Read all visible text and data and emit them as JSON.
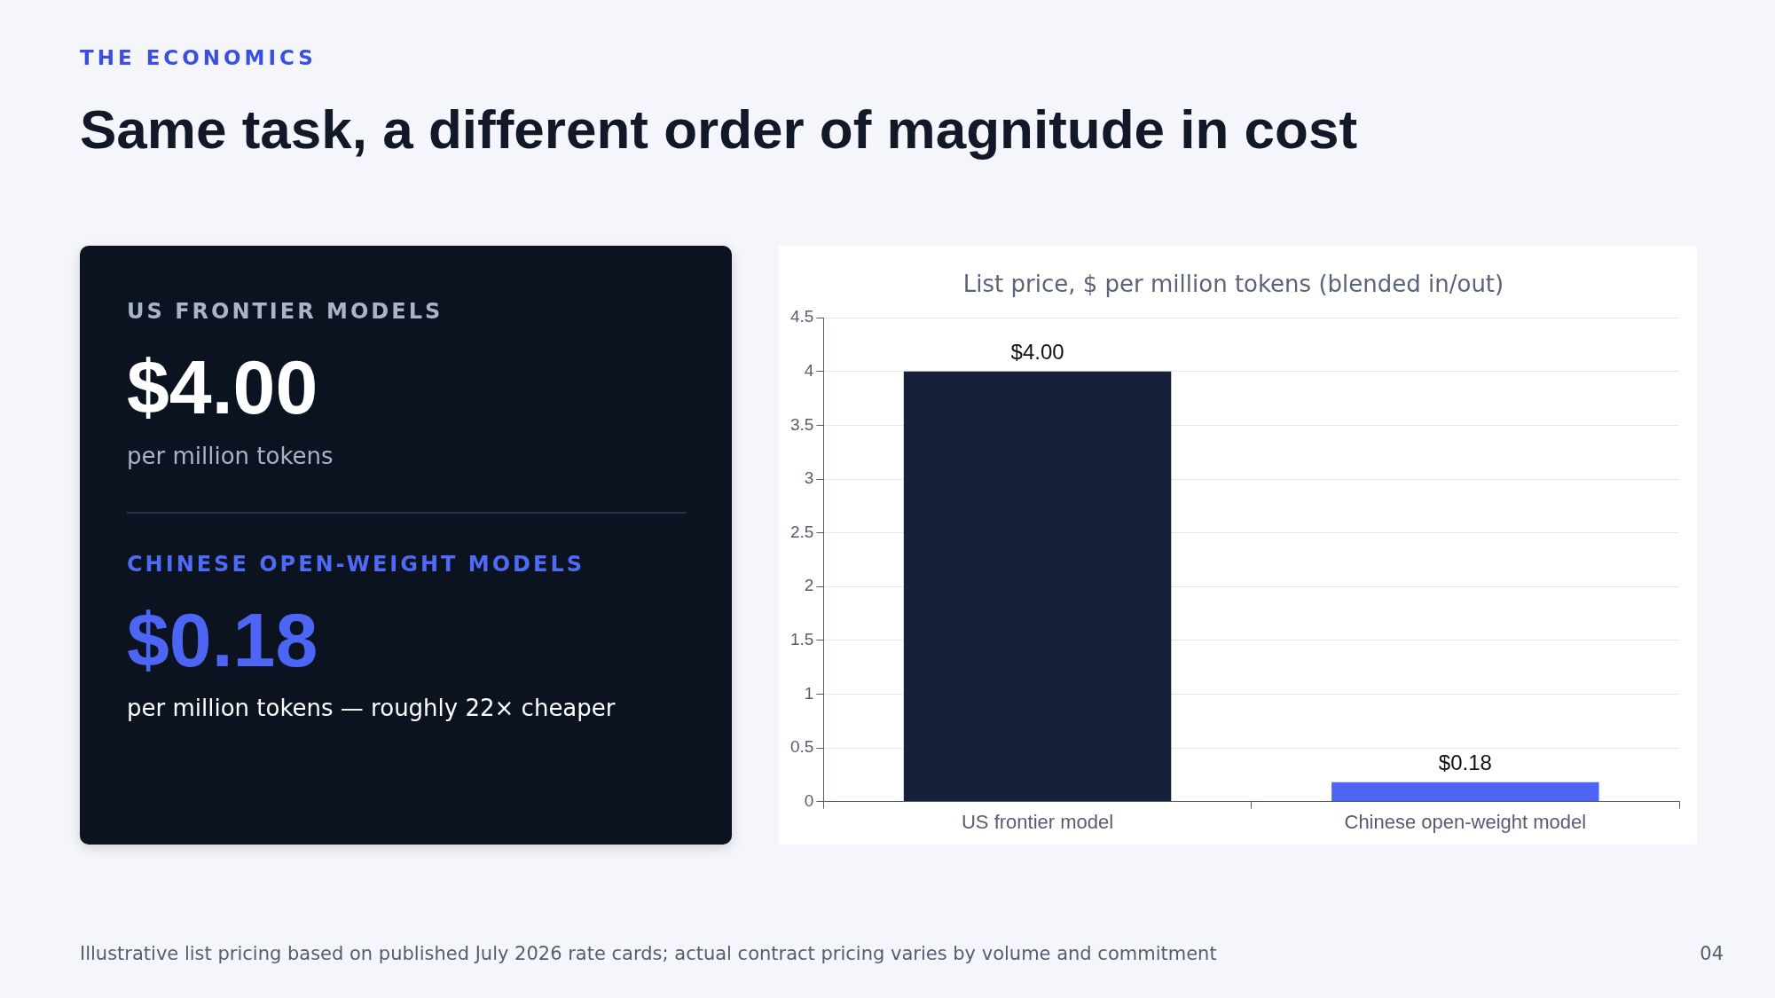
{
  "chart_data": [
    {
      "type": "other",
      "subtitle": "THE ECONOMICS",
      "title": "Same task, a different order of magnitude in cost",
      "annotations": [
        "US FRONTIER MODELS",
        "$4.00",
        "per million tokens",
        "CHINESE OPEN-WEIGHT MODELS",
        "$0.18",
        "per million tokens — roughly 22× cheaper"
      ]
    },
    {
      "type": "bar",
      "title": "List price, $ per million tokens (blended in/out)",
      "categories": [
        "US frontier model",
        "Chinese open-weight model"
      ],
      "values": [
        4.0,
        0.18
      ],
      "colors": [
        "#172039",
        "#4d65f5"
      ],
      "value_labels": [
        "$4.00",
        "$0.18"
      ],
      "ylim": [
        0,
        4.5
      ],
      "yticks": [
        0,
        0.5,
        1,
        1.5,
        2,
        2.5,
        3,
        3.5,
        4,
        4.5
      ],
      "grid": "y",
      "annotations": [
        "Illustrative list pricing based on published July 2026 rate cards; actual contract pricing varies by volume and commitment",
        "04"
      ]
    }
  ]
}
